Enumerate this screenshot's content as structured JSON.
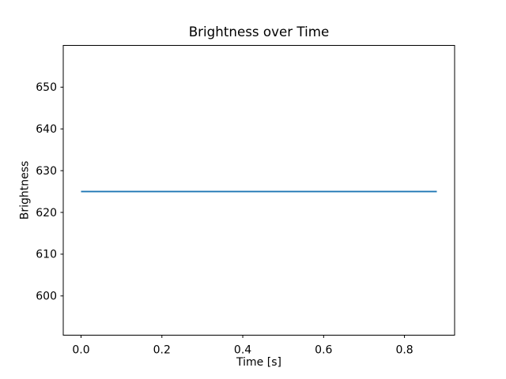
{
  "figure": {
    "background": "#ffffff",
    "frame_color": "#000000",
    "text_color": "#000000"
  },
  "chart_data": {
    "type": "line",
    "title": "Brightness over Time",
    "xlabel": "Time [s]",
    "ylabel": "Brightness",
    "xlim": [
      -0.044,
      0.924
    ],
    "ylim": [
      590.6,
      660.0
    ],
    "xticks": {
      "values": [
        0.0,
        0.2,
        0.4,
        0.6,
        0.8
      ],
      "labels": [
        "0.0",
        "0.2",
        "0.4",
        "0.6",
        "0.8"
      ]
    },
    "yticks": {
      "values": [
        600,
        610,
        620,
        630,
        640,
        650
      ],
      "labels": [
        "600",
        "610",
        "620",
        "630",
        "640",
        "650"
      ]
    },
    "grid": false,
    "legend": null,
    "series": [
      {
        "name": "brightness",
        "color": "#1f77b4",
        "line_width": 1.8,
        "x": [
          0.0,
          0.88
        ],
        "y": [
          625,
          625
        ]
      }
    ]
  }
}
